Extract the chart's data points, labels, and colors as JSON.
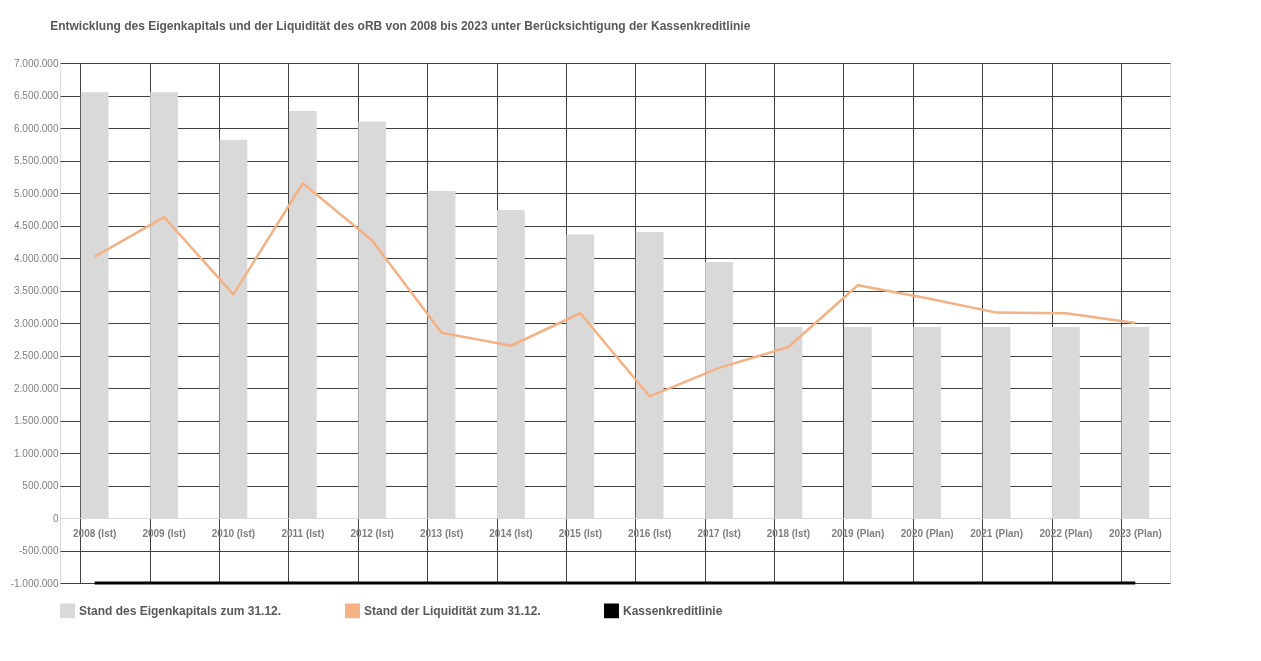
{
  "chart_data": {
    "type": "bar",
    "title": "Entwicklung des Eigenkapitals  und der Liquidität  des oRB von 2008 bis 2023 unter Berücksichtigung  der Kassenkreditlinie",
    "categories": [
      "2008 (Ist)",
      "2009 (Ist)",
      "2010 (Ist)",
      "2011 (Ist)",
      "2012 (Ist)",
      "2013 (Ist)",
      "2014 (Ist)",
      "2015 (Ist)",
      "2016 (Ist)",
      "2017 (Ist)",
      "2018 (Ist)",
      "2019 (Plan)",
      "2020 (Plan)",
      "2021 (Plan)",
      "2022 (Plan)",
      "2023 (Plan)"
    ],
    "series": [
      {
        "name": "Stand des Eigenkapitals zum 31.12.",
        "color": "#d9d9d9",
        "values": [
          6550000,
          6550000,
          5820000,
          6260000,
          6100000,
          5030000,
          4740000,
          4360000,
          4400000,
          3940000,
          2940000,
          2940000,
          2940000,
          2940000,
          2940000,
          2940000
        ]
      },
      {
        "name": "Stand der Liquidität zum 31.12.",
        "type": "line",
        "color": "#f4b183",
        "values": [
          4020000,
          4630000,
          3440000,
          5150000,
          4270000,
          2850000,
          2650000,
          3150000,
          1870000,
          2310000,
          2630000,
          3580000,
          3380000,
          3160000,
          3150000,
          3000000
        ]
      },
      {
        "name": "Kassenkreditlinie",
        "type": "line",
        "color": "#000000",
        "values": [
          -1000000,
          -1000000,
          -1000000,
          -1000000,
          -1000000,
          -1000000,
          -1000000,
          -1000000,
          -1000000,
          -1000000,
          -1000000,
          -1000000,
          -1000000,
          -1000000,
          -1000000,
          -1000000
        ]
      }
    ],
    "ylim": [
      -1000000,
      7000000
    ],
    "yticks": [
      {
        "value": -1000000,
        "label": "-1.000.000"
      },
      {
        "value": -500000,
        "label": "-500.000"
      },
      0,
      {
        "value": 500000,
        "label": "500.000"
      },
      {
        "value": 1000000,
        "label": "1.000.000"
      },
      {
        "value": 1500000,
        "label": "1.500.000"
      },
      {
        "value": 2000000,
        "label": "2.000.000"
      },
      {
        "value": 2500000,
        "label": "2.500.000"
      },
      {
        "value": 3000000,
        "label": "3.000.000"
      },
      {
        "value": 3500000,
        "label": "3.500.000"
      },
      {
        "value": 4000000,
        "label": "4.000.000"
      },
      {
        "value": 4500000,
        "label": "4.500.000"
      },
      {
        "value": 5000000,
        "label": "5.000.000"
      },
      {
        "value": 5500000,
        "label": "5.500.000"
      },
      {
        "value": 6000000,
        "label": "6.000.000"
      },
      {
        "value": 6500000,
        "label": "6.500.000"
      },
      {
        "value": 7000000,
        "label": "7.000.000"
      }
    ],
    "grid": true,
    "legend": "bottom"
  }
}
